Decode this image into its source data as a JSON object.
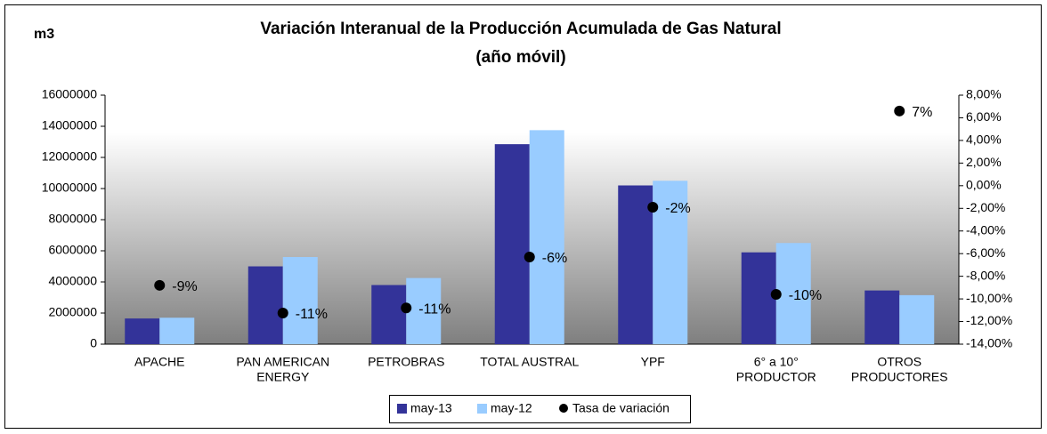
{
  "chart_data": {
    "type": "bar",
    "title": [
      "Variación Interanual de la Producción Acumulada de Gas Natural",
      "(año móvil)"
    ],
    "y_label": "m3",
    "categories": [
      [
        "APACHE"
      ],
      [
        "PAN AMERICAN",
        "ENERGY"
      ],
      [
        "PETROBRAS"
      ],
      [
        "TOTAL AUSTRAL"
      ],
      [
        "YPF"
      ],
      [
        "6° a 10°",
        "PRODUCTOR"
      ],
      [
        "OTROS",
        "PRODUCTORES"
      ]
    ],
    "series": [
      {
        "name": "may-13",
        "type": "bar",
        "color": "#333399",
        "values": [
          1650000,
          5000000,
          3800000,
          12850000,
          10200000,
          5900000,
          3450000
        ]
      },
      {
        "name": "may-12",
        "type": "bar",
        "color": "#99ccff",
        "values": [
          1700000,
          5600000,
          4250000,
          13750000,
          10500000,
          6500000,
          3150000
        ]
      },
      {
        "name": "Tasa de variación",
        "type": "scatter",
        "axis": "y2",
        "color": "#000000",
        "values": [
          -8.8,
          -11.25,
          -10.8,
          -6.3,
          -1.9,
          -9.6,
          6.6
        ],
        "value_labels": [
          "-9%",
          "-11%",
          "-11%",
          "-6%",
          "-2%",
          "-10%",
          "7%"
        ]
      }
    ],
    "ylim": [
      0,
      16000000
    ],
    "yticks": [
      0,
      2000000,
      4000000,
      6000000,
      8000000,
      10000000,
      12000000,
      14000000,
      16000000
    ],
    "y2lim": [
      -14,
      8
    ],
    "y2ticks": [
      {
        "value": -14,
        "label": "-14,00%"
      },
      {
        "value": -12,
        "label": "-12,00%"
      },
      {
        "value": -10,
        "label": "-10,00%"
      },
      {
        "value": -8,
        "label": "-8,00%"
      },
      {
        "value": -6,
        "label": "-6,00%"
      },
      {
        "value": -4,
        "label": "-4,00%"
      },
      {
        "value": -2,
        "label": "-2,00%"
      },
      {
        "value": 0,
        "label": "0,00%"
      },
      {
        "value": 2,
        "label": "2,00%"
      },
      {
        "value": 4,
        "label": "4,00%"
      },
      {
        "value": 6,
        "label": "6,00%"
      },
      {
        "value": 8,
        "label": "8,00%"
      }
    ],
    "legend": "bottom"
  }
}
